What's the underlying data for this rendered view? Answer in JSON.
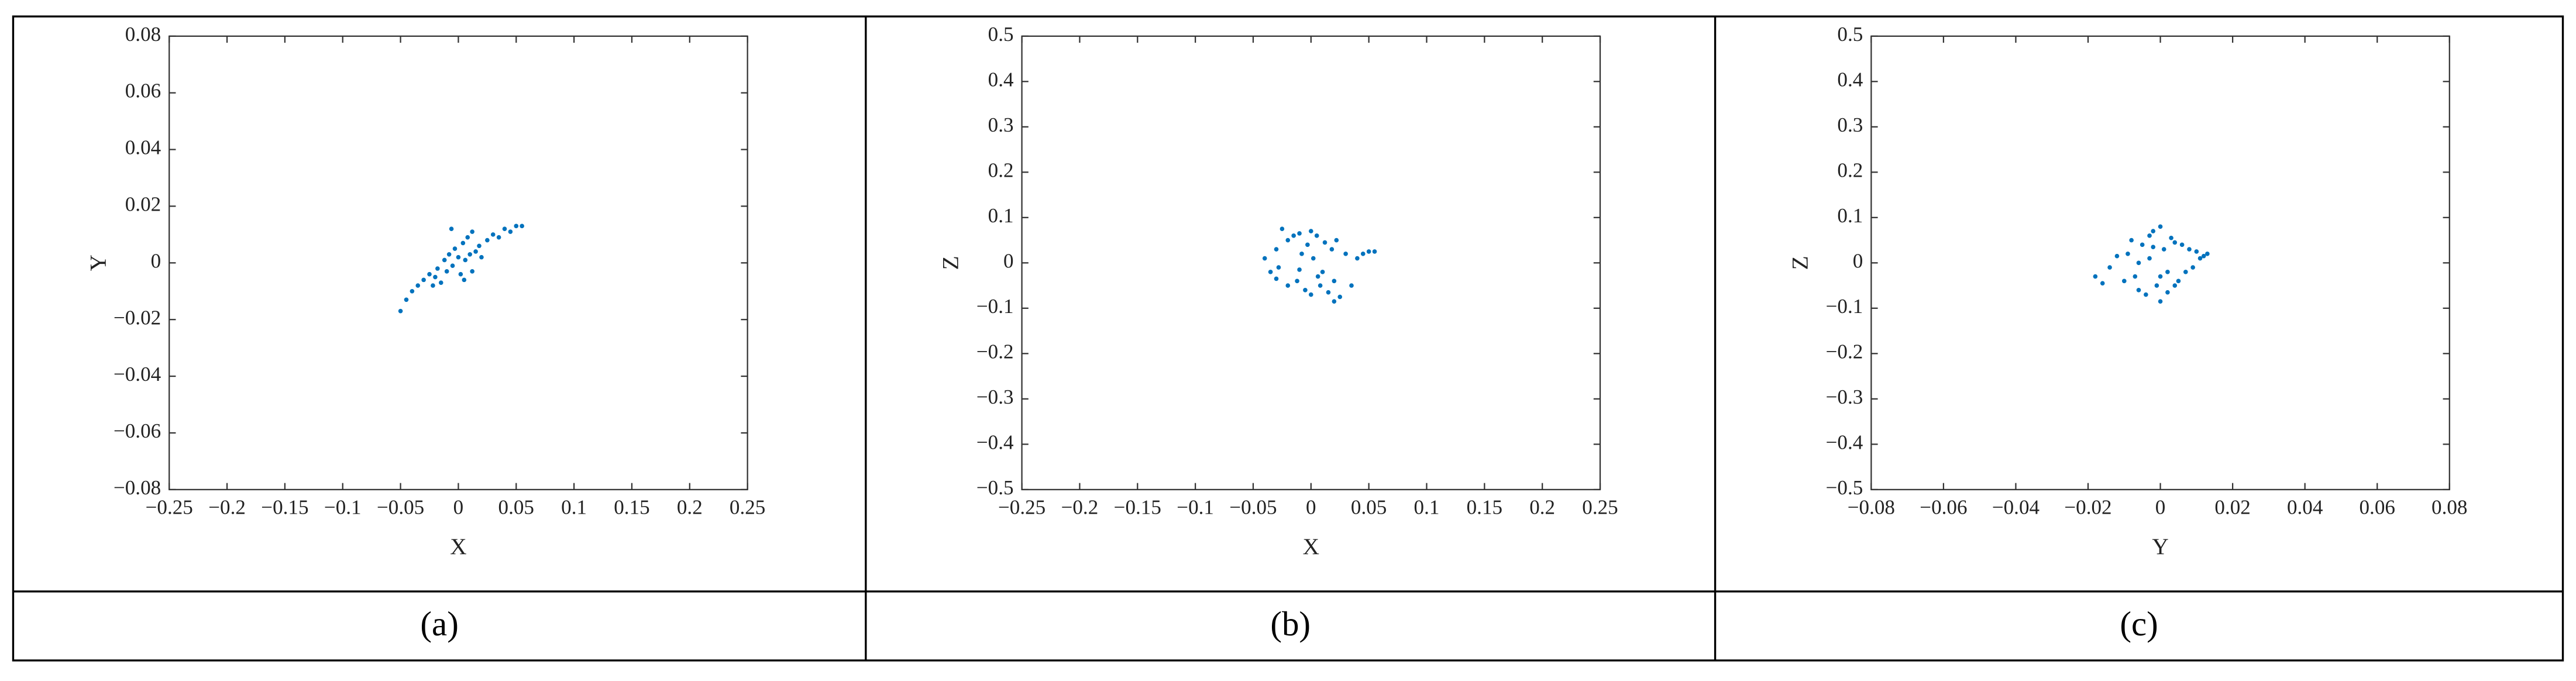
{
  "chart_data": [
    {
      "type": "scatter",
      "caption": "(a)",
      "x_label": "X",
      "y_label": "Y",
      "color": "#0072bd",
      "xlim": [
        -0.25,
        0.25
      ],
      "ylim": [
        -0.08,
        0.08
      ],
      "xticks": [
        {
          "value": -0.25,
          "label": "−0.25"
        },
        {
          "value": -0.2,
          "label": "−0.2"
        },
        {
          "value": -0.15,
          "label": "−0.15"
        },
        {
          "value": -0.1,
          "label": "−0.1"
        },
        {
          "value": -0.05,
          "label": "−0.05"
        },
        0,
        0.05,
        0.1,
        0.15,
        0.2,
        0.25
      ],
      "yticks": [
        {
          "value": -0.08,
          "label": "−0.08"
        },
        {
          "value": -0.06,
          "label": "−0.06"
        },
        {
          "value": -0.04,
          "label": "−0.04"
        },
        {
          "value": -0.02,
          "label": "−0.02"
        },
        0,
        0.02,
        0.04,
        0.06,
        0.08
      ],
      "x": [
        -0.05,
        -0.045,
        -0.04,
        -0.035,
        -0.03,
        -0.025,
        -0.02,
        -0.018,
        -0.015,
        -0.012,
        -0.01,
        -0.008,
        -0.005,
        -0.003,
        0,
        0.002,
        0.004,
        0.006,
        0.008,
        0.01,
        0.012,
        0.015,
        0.018,
        0.02,
        0.025,
        0.03,
        0.035,
        0.04,
        0.045,
        0.05,
        0.055,
        -0.022,
        0.005,
        -0.006,
        0.012
      ],
      "values": [
        -0.017,
        -0.013,
        -0.01,
        -0.008,
        -0.006,
        -0.004,
        -0.005,
        -0.002,
        -0.007,
        0.001,
        -0.003,
        0.003,
        -0.001,
        0.005,
        0.002,
        -0.004,
        0.007,
        0.001,
        0.009,
        0.003,
        0.011,
        0.004,
        0.006,
        0.002,
        0.008,
        0.01,
        0.009,
        0.012,
        0.011,
        0.013,
        0.013,
        -0.008,
        -0.006,
        0.012,
        -0.003
      ]
    },
    {
      "type": "scatter",
      "caption": "(b)",
      "x_label": "X",
      "y_label": "Z",
      "color": "#0072bd",
      "xlim": [
        -0.25,
        0.25
      ],
      "ylim": [
        -0.5,
        0.5
      ],
      "xticks": [
        {
          "value": -0.25,
          "label": "−0.25"
        },
        {
          "value": -0.2,
          "label": "−0.2"
        },
        {
          "value": -0.15,
          "label": "−0.15"
        },
        {
          "value": -0.1,
          "label": "−0.1"
        },
        {
          "value": -0.05,
          "label": "−0.05"
        },
        0,
        0.05,
        0.1,
        0.15,
        0.2,
        0.25
      ],
      "yticks": [
        {
          "value": -0.5,
          "label": "−0.5"
        },
        {
          "value": -0.4,
          "label": "−0.4"
        },
        {
          "value": -0.3,
          "label": "−0.3"
        },
        {
          "value": -0.2,
          "label": "−0.2"
        },
        {
          "value": -0.1,
          "label": "−0.1"
        },
        0,
        0.1,
        0.2,
        0.3,
        0.4,
        0.5
      ],
      "x": [
        -0.04,
        -0.035,
        -0.03,
        -0.03,
        -0.025,
        -0.02,
        -0.02,
        -0.015,
        -0.012,
        -0.01,
        -0.008,
        -0.005,
        -0.003,
        0,
        0,
        0.002,
        0.005,
        0.008,
        0.01,
        0.012,
        0.015,
        0.018,
        0.02,
        0.022,
        0.025,
        0.03,
        0.035,
        0.04,
        0.045,
        0.05,
        0.055,
        -0.028,
        0.006,
        -0.01,
        0.02
      ],
      "values": [
        0.01,
        -0.02,
        0.03,
        -0.035,
        0.075,
        0.05,
        -0.05,
        0.06,
        -0.04,
        0.065,
        0.02,
        -0.06,
        0.04,
        0.07,
        -0.07,
        0.01,
        0.06,
        -0.05,
        -0.02,
        0.045,
        -0.065,
        0.03,
        -0.04,
        0.05,
        -0.075,
        0.02,
        -0.05,
        0.01,
        0.02,
        0.025,
        0.025,
        -0.01,
        -0.03,
        -0.015,
        -0.085
      ]
    },
    {
      "type": "scatter",
      "caption": "(c)",
      "x_label": "Y",
      "y_label": "Z",
      "color": "#0072bd",
      "xlim": [
        -0.08,
        0.08
      ],
      "ylim": [
        -0.5,
        0.5
      ],
      "xticks": [
        {
          "value": -0.08,
          "label": "−0.08"
        },
        {
          "value": -0.06,
          "label": "−0.06"
        },
        {
          "value": -0.04,
          "label": "−0.04"
        },
        {
          "value": -0.02,
          "label": "−0.02"
        },
        0,
        0.02,
        0.04,
        0.06,
        0.08
      ],
      "yticks": [
        {
          "value": -0.5,
          "label": "−0.5"
        },
        {
          "value": -0.4,
          "label": "−0.4"
        },
        {
          "value": -0.3,
          "label": "−0.3"
        },
        {
          "value": -0.2,
          "label": "−0.2"
        },
        {
          "value": -0.1,
          "label": "−0.1"
        },
        0,
        0.1,
        0.2,
        0.3,
        0.4,
        0.5
      ],
      "x": [
        -0.018,
        -0.016,
        -0.014,
        -0.012,
        -0.01,
        -0.009,
        -0.008,
        -0.007,
        -0.006,
        -0.005,
        -0.004,
        -0.003,
        -0.002,
        -0.001,
        0,
        0,
        0.001,
        0.002,
        0.003,
        0.004,
        0.005,
        0.006,
        0.007,
        0.008,
        0.009,
        0.01,
        0.011,
        0.012,
        0.013,
        -0.003,
        0.002,
        -0.006,
        0.004,
        -0.002,
        0
      ],
      "values": [
        -0.03,
        -0.045,
        -0.01,
        0.015,
        -0.04,
        0.02,
        0.05,
        -0.03,
        -0.06,
        0.04,
        -0.07,
        0.06,
        0.07,
        -0.05,
        0.08,
        -0.085,
        0.03,
        -0.065,
        0.055,
        0.045,
        -0.04,
        0.04,
        -0.02,
        0.03,
        -0.01,
        0.025,
        0.01,
        0.015,
        0.02,
        0.01,
        -0.02,
        0,
        -0.05,
        0.035,
        -0.03
      ]
    }
  ]
}
